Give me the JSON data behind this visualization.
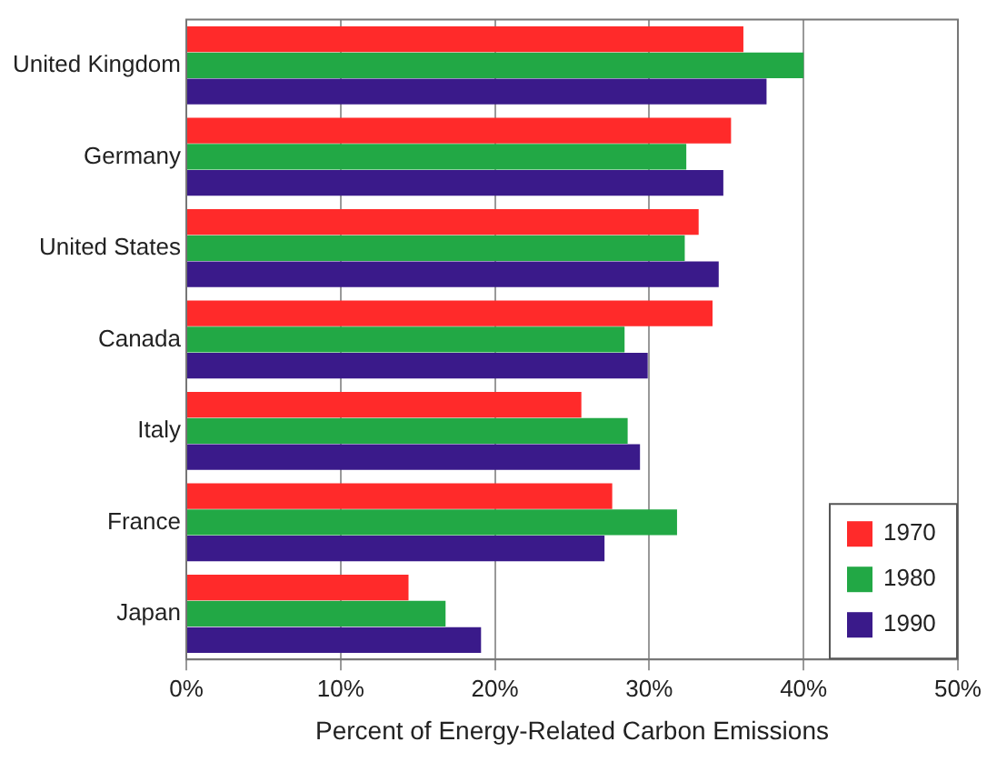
{
  "chart_data": {
    "type": "bar",
    "orientation": "horizontal",
    "xlabel": "Percent of Energy-Related Carbon Emissions",
    "categories": [
      "United Kingdom",
      "Germany",
      "United States",
      "Canada",
      "Italy",
      "France",
      "Japan"
    ],
    "series": [
      {
        "name": "1970",
        "color": "#ff2a2a",
        "values": [
          36.1,
          35.3,
          33.2,
          34.1,
          25.6,
          27.6,
          14.4
        ]
      },
      {
        "name": "1980",
        "color": "#22a845",
        "values": [
          40.0,
          32.4,
          32.3,
          28.4,
          28.6,
          31.8,
          16.8
        ]
      },
      {
        "name": "1990",
        "color": "#3a1a8a",
        "values": [
          37.6,
          34.8,
          34.5,
          29.9,
          29.4,
          27.1,
          19.1
        ]
      }
    ],
    "xlim": [
      0,
      50
    ],
    "xticks": [
      {
        "value": 0,
        "label": "0%"
      },
      {
        "value": 10,
        "label": "10%"
      },
      {
        "value": 20,
        "label": "20%"
      },
      {
        "value": 30,
        "label": "30%"
      },
      {
        "value": 40,
        "label": "40%"
      },
      {
        "value": 50,
        "label": "50%"
      }
    ],
    "grid": "x",
    "legend": "bottom right"
  }
}
